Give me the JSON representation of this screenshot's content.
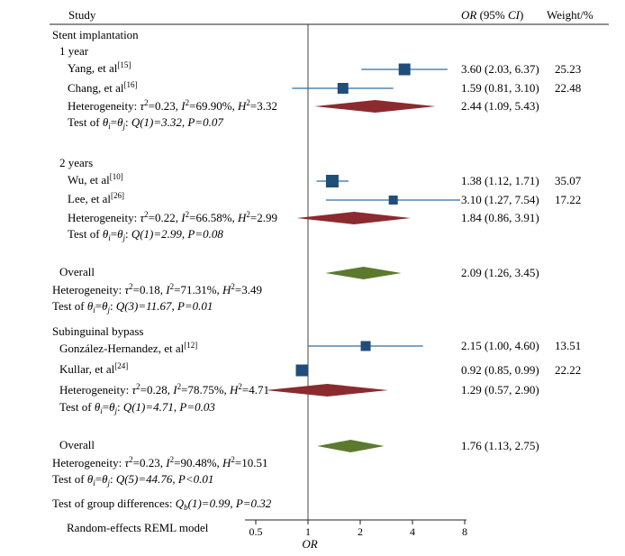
{
  "chart_data": {
    "type": "forest",
    "header": {
      "study": "Study",
      "or_ci_label": "OR (95% CI)",
      "weight": "Weight/%"
    },
    "groups": [
      {
        "title": "Stent implantation"
      }
    ],
    "subgroups": [
      {
        "title": "1 year"
      },
      {
        "title": "2 years"
      }
    ],
    "studies": [
      {
        "name": "Yang, et al",
        "ref": "[15]",
        "or": 3.6,
        "lo": 2.03,
        "hi": 6.37,
        "ci_text": "3.60 (2.03, 6.37)",
        "weight": "25.23"
      },
      {
        "name": "Chang, et al",
        "ref": "[16]",
        "or": 1.59,
        "lo": 0.81,
        "hi": 3.1,
        "ci_text": "1.59 (0.81, 3.10)",
        "weight": "22.48"
      },
      {
        "name": "Wu, et al",
        "ref": "[10]",
        "or": 1.38,
        "lo": 1.12,
        "hi": 1.71,
        "ci_text": "1.38 (1.12, 1.71)",
        "weight": "35.07"
      },
      {
        "name": "Lee, et al",
        "ref": "[26]",
        "or": 3.1,
        "lo": 1.27,
        "hi": 7.54,
        "ci_text": "3.10 (1.27, 7.54)",
        "weight": "17.22"
      },
      {
        "name": "González-Hernandez, et al",
        "ref": "[12]",
        "or": 2.15,
        "lo": 1.0,
        "hi": 4.6,
        "ci_text": "2.15 (1.00, 4.60)",
        "weight": "13.51"
      },
      {
        "name": "Kullar, et al",
        "ref": "[24]",
        "or": 0.92,
        "lo": 0.85,
        "hi": 0.99,
        "ci_text": "0.92 (0.85, 0.99)",
        "weight": "22.22"
      }
    ],
    "pooled": [
      {
        "label": "1 year pooled",
        "or": 2.44,
        "lo": 1.09,
        "hi": 5.43,
        "ci_text": "2.44 (1.09, 5.43)",
        "color": "#8b2b2f"
      },
      {
        "label": "2 years pooled",
        "or": 1.84,
        "lo": 0.86,
        "hi": 3.91,
        "ci_text": "1.84 (0.86, 3.91)",
        "color": "#8b2b2f"
      },
      {
        "label": "Stent overall",
        "or": 2.09,
        "lo": 1.26,
        "hi": 3.45,
        "ci_text": "2.09 (1.26, 3.45)",
        "color": "#5c7a2e"
      },
      {
        "label": "Bypass pooled",
        "or": 1.29,
        "lo": 0.57,
        "hi": 2.9,
        "ci_text": "1.29 (0.57, 2.90)",
        "color": "#8b2b2f"
      },
      {
        "label": "Overall",
        "or": 1.76,
        "lo": 1.13,
        "hi": 2.75,
        "ci_text": "1.76 (1.13, 2.75)",
        "color": "#5c7a2e"
      }
    ],
    "stats": {
      "het_1y": {
        "tau2": "0.23",
        "i2": "69.90%",
        "h2": "3.32"
      },
      "test_1y": {
        "q": "Q(1)=3.32",
        "p": "P=0.07"
      },
      "het_2y": {
        "tau2": "0.22",
        "i2": "66.58%",
        "h2": "2.99"
      },
      "test_2y": {
        "q": "Q(1)=2.99",
        "p": "P=0.08"
      },
      "het_stent": {
        "tau2": "0.18",
        "i2": "71.31%",
        "h2": "3.49"
      },
      "test_stent": {
        "q": "Q(3)=11.67",
        "p": "P=0.01"
      },
      "het_bypass": {
        "tau2": "0.28",
        "i2": "78.75%",
        "h2": "4.71"
      },
      "test_bypass": {
        "q": "Q(1)=4.71",
        "p": "P=0.03"
      },
      "het_all": {
        "tau2": "0.23",
        "i2": "90.48%",
        "h2": "10.51"
      },
      "test_all": {
        "q": "Q(5)=44.76",
        "p": "P<0.01"
      },
      "group_diff": {
        "q": "(1)=0.99",
        "p": "P=0.32"
      }
    },
    "labels": {
      "overall": "Overall",
      "bypass_group": "Subinguinal bypass",
      "heterogeneity": "Heterogeneity: ",
      "test_of": "Test of ",
      "group_test": "Test of group differences: ",
      "model": "Random-effects REML model"
    },
    "axis": {
      "scale": "log",
      "ticks": [
        0.5,
        1,
        2,
        4,
        8
      ],
      "tick_labels": [
        "0.5",
        "1",
        "2",
        "4",
        "8"
      ],
      "xlabel": "OR",
      "ref_line": 1
    },
    "colors": {
      "square": "#1f4e79",
      "subgroup_diamond": "#8b2b2f",
      "overall_diamond": "#5c7a2e",
      "ci_line": "#2e6da4"
    }
  }
}
